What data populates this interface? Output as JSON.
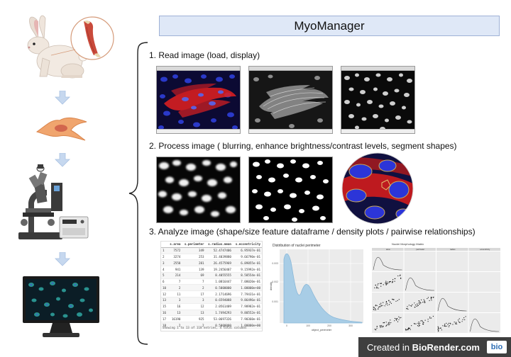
{
  "title": "MyoManager",
  "steps": [
    {
      "heading": "1. Read image (load, display)"
    },
    {
      "heading": "2. Process image ( blurring, enhance brightness/contrast levels, segment shapes)"
    },
    {
      "heading": "3. Analyze image (shape/size feature dataframe / density plots / pairwise relationships)"
    }
  ],
  "table": {
    "columns": [
      "",
      "s.area",
      "s.perimeter",
      "s.radius.mean",
      "s.eccentricity"
    ],
    "rows": [
      [
        "1",
        "7572",
        "349",
        "52.4747406",
        "6.95937e-01"
      ],
      [
        "2",
        "3274",
        "253",
        "31.4039880",
        "9.66790e-01"
      ],
      [
        "3",
        "2558",
        "281",
        "26.4575969",
        "6.89055e-01"
      ],
      [
        "4",
        "941",
        "139",
        "19.2456407",
        "9.15992e-01"
      ],
      [
        "5",
        "214",
        "69",
        "8.4055555",
        "8.58554e-01"
      ],
      [
        "6",
        "7",
        "7",
        "1.0816447",
        "7.08020e-01"
      ],
      [
        "10",
        "2",
        "2",
        "0.5000000",
        "1.00000e+00"
      ],
      [
        "12",
        "11",
        "17",
        "2.1714696",
        "7.79431e-01"
      ],
      [
        "13",
        "3",
        "3",
        "0.6594088",
        "9.86496e-01"
      ],
      [
        "15",
        "16",
        "12",
        "2.0561409",
        "7.98982e-01"
      ],
      [
        "16",
        "13",
        "13",
        "1.7494293",
        "9.80552e-01"
      ],
      [
        "17",
        "16190",
        "925",
        "53.0697326",
        "7.90360e-01"
      ],
      [
        "18",
        "2",
        "2",
        "0.5000000",
        "1.00000e+00"
      ]
    ],
    "footer": "Showing 1 to 13 of 118 entries, 4 total columns"
  },
  "density": {
    "title": "Distribution of nuclei perimeter",
    "xlabel": "object_perimeter",
    "ylabel": "density",
    "yticks": [
      "0.003",
      "0.002",
      "0.001"
    ],
    "xticks": [
      "0",
      "100",
      "200",
      "300"
    ]
  },
  "pairwise": {
    "title": "Nuclei Morphology Matrix",
    "headers": [
      "area",
      "perimeter",
      "radius",
      "eccentricity"
    ]
  },
  "badge": {
    "prefix": "Created in ",
    "brand": "BioRender.com",
    "logo": "bio"
  },
  "colors": {
    "title_bg": "#dfe8f7",
    "arrow": "#b7cde8",
    "density_fill": "#b3d4ea"
  }
}
